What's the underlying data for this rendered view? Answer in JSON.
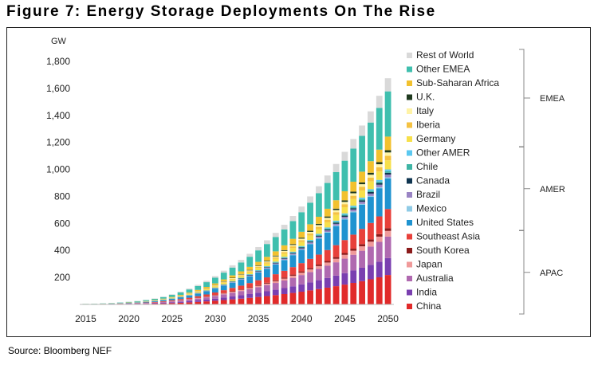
{
  "title": "Figure 7: Energy Storage Deployments On The Rise",
  "source": "Source: Bloomberg NEF",
  "chart_data": {
    "type": "bar",
    "stacked": true,
    "ylabel": "GW",
    "ylim": [
      0,
      1800
    ],
    "yticks": [
      200,
      400,
      600,
      800,
      "1,000",
      "1,200",
      "1,400",
      "1,600",
      "1,800"
    ],
    "ytick_values": [
      200,
      400,
      600,
      800,
      1000,
      1200,
      1400,
      1600,
      1800
    ],
    "xticks": [
      "2015",
      "2020",
      "2025",
      "2030",
      "2035",
      "2040",
      "2045",
      "2050"
    ],
    "x": [
      2015,
      2016,
      2017,
      2018,
      2019,
      2020,
      2021,
      2022,
      2023,
      2024,
      2025,
      2026,
      2027,
      2028,
      2029,
      2030,
      2031,
      2032,
      2033,
      2034,
      2035,
      2036,
      2037,
      2038,
      2039,
      2040,
      2041,
      2042,
      2043,
      2044,
      2045,
      2046,
      2047,
      2048,
      2049,
      2050
    ],
    "totals": [
      5,
      6,
      8,
      11,
      15,
      20,
      26,
      34,
      44,
      58,
      75,
      95,
      118,
      145,
      175,
      210,
      250,
      290,
      330,
      375,
      425,
      475,
      530,
      590,
      655,
      725,
      800,
      875,
      955,
      1040,
      1130,
      1225,
      1325,
      1430,
      1545,
      1675
    ],
    "share_order_bottom_to_top": [
      "China",
      "India",
      "Australia",
      "Japan",
      "South Korea",
      "Southeast Asia",
      "United States",
      "Mexico",
      "Brazil",
      "Canada",
      "Chile",
      "Other AMER",
      "Germany",
      "Iberia",
      "Italy",
      "U.K.",
      "Sub-Saharan Africa",
      "Other EMEA",
      "Rest of World"
    ],
    "shares": [
      0.13,
      0.075,
      0.095,
      0.025,
      0.012,
      0.085,
      0.135,
      0.005,
      0.012,
      0.008,
      0.007,
      0.008,
      0.04,
      0.02,
      0.015,
      0.01,
      0.06,
      0.2,
      0.058
    ],
    "legend_groups": [
      {
        "name": "EMEA",
        "items": [
          "Rest of World",
          "Other EMEA",
          "Sub-Saharan Africa",
          "U.K.",
          "Italy",
          "Iberia",
          "Germany"
        ]
      },
      {
        "name": "AMER",
        "items": [
          "Other AMER",
          "Chile",
          "Canada",
          "Brazil",
          "Mexico",
          "United States"
        ]
      },
      {
        "name": "APAC",
        "items": [
          "Southeast Asia",
          "South Korea",
          "Japan",
          "Australia",
          "India",
          "China"
        ]
      }
    ],
    "colors": {
      "Rest of World": "#d9d9d9",
      "Other EMEA": "#3fbfae",
      "Sub-Saharan Africa": "#f2c12e",
      "U.K.": "#1f3a1f",
      "Italy": "#fff3a6",
      "Iberia": "#f5c242",
      "Germany": "#f7e04b",
      "Other AMER": "#5bc8f0",
      "Chile": "#3fb5a5",
      "Canada": "#0f3550",
      "Brazil": "#9a84c4",
      "Mexico": "#8fcbe6",
      "United States": "#1f93d0",
      "Southeast Asia": "#e8403a",
      "South Korea": "#8b1b1b",
      "Japan": "#f09a9a",
      "Australia": "#b069b0",
      "India": "#7a3fb0",
      "China": "#e12a2a"
    }
  }
}
